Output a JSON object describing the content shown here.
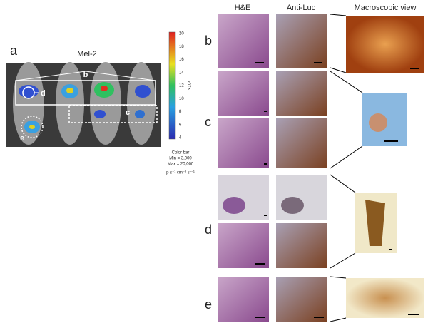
{
  "panel_a": {
    "label": "a",
    "title": "Mel-2",
    "roi_labels": [
      "b",
      "d",
      "c",
      "e"
    ],
    "colorbar": {
      "ticks": [
        "20",
        "18",
        "16",
        "14",
        "12",
        "10",
        "8",
        "6",
        "4"
      ],
      "unit": "×10³",
      "caption": [
        "Color bar",
        "Min = 3,000",
        "Max = 20,000"
      ],
      "units": "p s⁻¹ cm⁻² sr⁻¹"
    }
  },
  "panel_be": {
    "headers": [
      "H&E",
      "Anti-Luc",
      "Macroscopic view"
    ],
    "rows": [
      {
        "label": "b"
      },
      {
        "label": "c"
      },
      {
        "label": "d"
      },
      {
        "label": "e"
      }
    ]
  }
}
